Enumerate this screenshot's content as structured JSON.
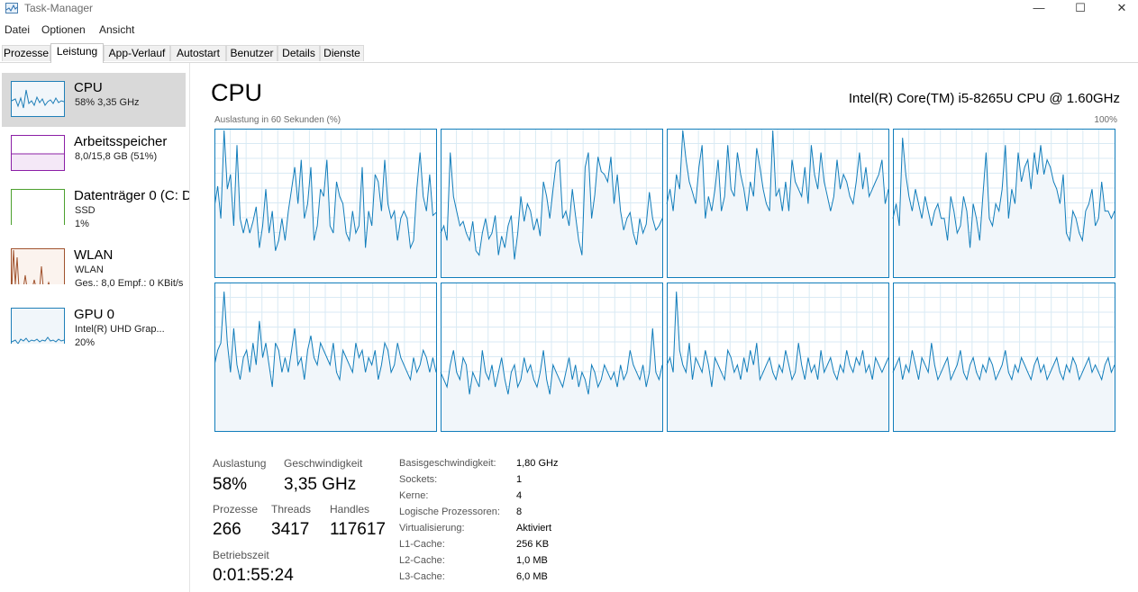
{
  "window": {
    "title": "Task-Manager",
    "minimize_glyph": "—",
    "maximize_glyph": "☐",
    "close_glyph": "✕"
  },
  "menu": [
    "Datei",
    "Optionen",
    "Ansicht"
  ],
  "tabs": [
    "Prozesse",
    "Leistung",
    "App-Verlauf",
    "Autostart",
    "Benutzer",
    "Details",
    "Dienste"
  ],
  "active_tab": "Leistung",
  "sidebar": {
    "items": [
      {
        "name": "CPU",
        "sub1": "58% 3,35 GHz",
        "sub2": "",
        "sub3": "",
        "color": "#1f7fb8"
      },
      {
        "name": "Arbeitsspeicher",
        "sub1": "8,0/15,8 GB (51%)",
        "sub2": "",
        "sub3": "",
        "color": "#8b1fa6"
      },
      {
        "name": "Datenträger 0 (C: D",
        "sub1": "SSD",
        "sub2": "1%",
        "sub3": "",
        "color": "#4ca02d"
      },
      {
        "name": "WLAN",
        "sub1": "WLAN",
        "sub2": "Ges.: 8,0 Empf.: 0 KBit/s",
        "sub3": "",
        "color": "#a0522d"
      },
      {
        "name": "GPU 0",
        "sub1": "Intel(R) UHD Grap...",
        "sub2": "20%",
        "sub3": "",
        "color": "#1f7fb8"
      }
    ]
  },
  "main": {
    "title": "CPU",
    "model": "Intel(R) Core(TM) i5-8265U CPU @ 1.60GHz",
    "util_label": "Auslastung in 60 Sekunden (%)",
    "util_max": "100%",
    "graph_color": "#117dbb",
    "graph_fill": "#f1f6fa",
    "graph_grid": "#d9eaf4",
    "stats": {
      "auslastung_label": "Auslastung",
      "auslastung_value": "58%",
      "geschw_label": "Geschwindigkeit",
      "geschw_value": "3,35 GHz",
      "prozesse_label": "Prozesse",
      "prozesse_value": "266",
      "threads_label": "Threads",
      "threads_value": "3417",
      "handles_label": "Handles",
      "handles_value": "117617",
      "betrieb_label": "Betriebszeit",
      "betrieb_value": "0:01:55:24"
    },
    "info": [
      {
        "label": "Basisgeschwindigkeit:",
        "value": "1,80 GHz"
      },
      {
        "label": "Sockets:",
        "value": "1"
      },
      {
        "label": "Kerne:",
        "value": "4"
      },
      {
        "label": "Logische Prozessoren:",
        "value": "8"
      },
      {
        "label": "Virtualisierung:",
        "value": "Aktiviert"
      },
      {
        "label": "L1-Cache:",
        "value": "256 KB"
      },
      {
        "label": "L2-Cache:",
        "value": "1,0 MB"
      },
      {
        "label": "L3-Cache:",
        "value": "6,0 MB"
      }
    ]
  },
  "core_series": [
    [
      48,
      62,
      40,
      100,
      60,
      70,
      35,
      90,
      40,
      30,
      40,
      30,
      38,
      48,
      20,
      35,
      60,
      30,
      45,
      18,
      25,
      40,
      25,
      45,
      60,
      75,
      50,
      80,
      40,
      50,
      75,
      25,
      35,
      60,
      55,
      80,
      35,
      30,
      65,
      55,
      50,
      30,
      25,
      45,
      30,
      35,
      75,
      20,
      45,
      35,
      70,
      65,
      45,
      80,
      50,
      40,
      45,
      25,
      40,
      45,
      40,
      20,
      25,
      60,
      85,
      55,
      45,
      70,
      42,
      44
    ],
    [
      30,
      35,
      25,
      85,
      55,
      45,
      35,
      38,
      30,
      25,
      38,
      18,
      15,
      30,
      40,
      26,
      30,
      42,
      15,
      28,
      20,
      35,
      42,
      12,
      30,
      55,
      38,
      50,
      45,
      32,
      40,
      28,
      65,
      55,
      40,
      60,
      78,
      80,
      40,
      45,
      35,
      60,
      42,
      25,
      15,
      75,
      85,
      40,
      56,
      82,
      72,
      70,
      65,
      82,
      50,
      70,
      45,
      32,
      40,
      44,
      30,
      22,
      40,
      30,
      36,
      58,
      40,
      32,
      35,
      40
    ],
    [
      50,
      60,
      45,
      70,
      60,
      100,
      80,
      65,
      58,
      50,
      75,
      90,
      40,
      55,
      45,
      60,
      80,
      45,
      55,
      90,
      60,
      55,
      85,
      70,
      60,
      45,
      65,
      55,
      88,
      75,
      60,
      50,
      45,
      100,
      55,
      60,
      45,
      65,
      45,
      80,
      65,
      60,
      55,
      75,
      50,
      90,
      70,
      60,
      85,
      65,
      55,
      45,
      55,
      80,
      60,
      70,
      65,
      55,
      50,
      65,
      85,
      60,
      75,
      55,
      60,
      65,
      70,
      80,
      50,
      60
    ],
    [
      40,
      50,
      35,
      95,
      70,
      55,
      45,
      60,
      50,
      40,
      55,
      45,
      35,
      45,
      50,
      40,
      40,
      25,
      55,
      45,
      30,
      35,
      55,
      45,
      20,
      50,
      40,
      25,
      55,
      85,
      40,
      35,
      50,
      45,
      60,
      90,
      40,
      60,
      50,
      85,
      65,
      75,
      80,
      60,
      85,
      70,
      90,
      70,
      80,
      75,
      65,
      60,
      50,
      70,
      30,
      25,
      45,
      40,
      30,
      25,
      45,
      50,
      60,
      35,
      40,
      65,
      45,
      45,
      40,
      45
    ],
    [
      45,
      55,
      60,
      95,
      60,
      40,
      70,
      45,
      35,
      50,
      55,
      40,
      60,
      45,
      75,
      50,
      60,
      45,
      30,
      60,
      55,
      40,
      50,
      40,
      55,
      70,
      45,
      50,
      35,
      55,
      65,
      50,
      45,
      60,
      55,
      50,
      45,
      60,
      40,
      35,
      55,
      50,
      45,
      40,
      60,
      50,
      55,
      40,
      50,
      45,
      55,
      35,
      45,
      60,
      55,
      40,
      45,
      60,
      50,
      45,
      40,
      35,
      50,
      40,
      45,
      55,
      50,
      40,
      50,
      40
    ],
    [
      40,
      35,
      30,
      45,
      55,
      40,
      35,
      50,
      45,
      25,
      40,
      35,
      30,
      55,
      40,
      35,
      45,
      30,
      40,
      50,
      35,
      25,
      40,
      45,
      30,
      35,
      50,
      40,
      45,
      35,
      30,
      40,
      55,
      35,
      25,
      45,
      40,
      35,
      30,
      40,
      50,
      35,
      45,
      30,
      40,
      35,
      25,
      45,
      40,
      30,
      35,
      45,
      40,
      35,
      40,
      30,
      45,
      35,
      40,
      55,
      45,
      40,
      35,
      45,
      30,
      40,
      70,
      40,
      35,
      45
    ],
    [
      45,
      50,
      40,
      95,
      55,
      45,
      40,
      60,
      35,
      50,
      45,
      40,
      55,
      45,
      30,
      50,
      45,
      40,
      35,
      55,
      50,
      40,
      45,
      35,
      50,
      40,
      55,
      45,
      60,
      35,
      40,
      45,
      50,
      40,
      35,
      45,
      40,
      55,
      45,
      35,
      40,
      60,
      45,
      35,
      50,
      40,
      45,
      35,
      55,
      40,
      45,
      50,
      40,
      35,
      45,
      40,
      55,
      45,
      40,
      50,
      45,
      55,
      40,
      45,
      35,
      50,
      45,
      40,
      45,
      50
    ],
    [
      40,
      45,
      50,
      35,
      45,
      40,
      55,
      45,
      35,
      50,
      45,
      40,
      60,
      45,
      35,
      40,
      45,
      50,
      35,
      40,
      45,
      55,
      40,
      35,
      45,
      50,
      40,
      35,
      45,
      40,
      50,
      45,
      35,
      40,
      45,
      55,
      40,
      35,
      45,
      40,
      50,
      45,
      40,
      35,
      45,
      50,
      40,
      45,
      35,
      40,
      45,
      50,
      40,
      35,
      45,
      40,
      50,
      45,
      35,
      40,
      45,
      50,
      40,
      45,
      40,
      35,
      45,
      50,
      40,
      45
    ]
  ]
}
